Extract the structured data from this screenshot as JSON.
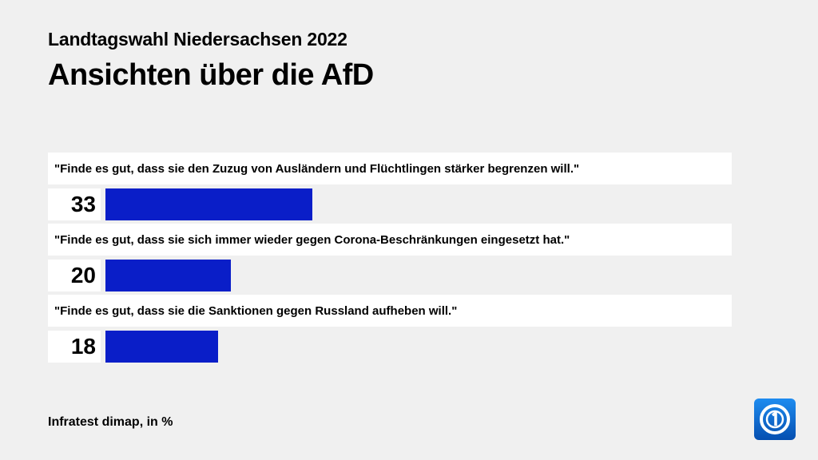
{
  "header": {
    "subtitle": "Landtagswahl Niedersachsen 2022",
    "title": "Ansichten über die AfD"
  },
  "footer": {
    "source": "Infratest dimap, in %"
  },
  "logo": {
    "icon": "tagesschau-logo-icon",
    "color": "#0a6fd8"
  },
  "colors": {
    "bar": "#0a1ec8",
    "background": "#f0f0f0"
  },
  "chart_data": {
    "type": "bar",
    "orientation": "horizontal",
    "title": "Ansichten über die AfD",
    "subtitle": "Landtagswahl Niedersachsen 2022",
    "unit": "%",
    "xlim": [
      0,
      100
    ],
    "categories": [
      "\"Finde es gut, dass sie den Zuzug von Ausländern und Flüchtlingen stärker begrenzen will.\"",
      "\"Finde es gut, dass sie sich immer wieder gegen Corona-Beschränkungen eingesetzt hat.\"",
      "\"Finde es gut, dass sie die Sanktionen gegen Russland aufheben will.\""
    ],
    "values": [
      33,
      20,
      18
    ]
  }
}
